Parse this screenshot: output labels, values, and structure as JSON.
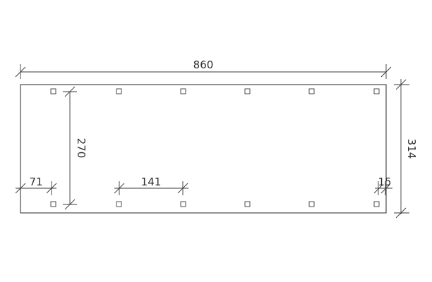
{
  "dimensions": {
    "total_length": "860",
    "total_width": "314",
    "post_span": "270",
    "front_overhang": "71",
    "post_spacing": "141",
    "rear_overhang": "15"
  }
}
